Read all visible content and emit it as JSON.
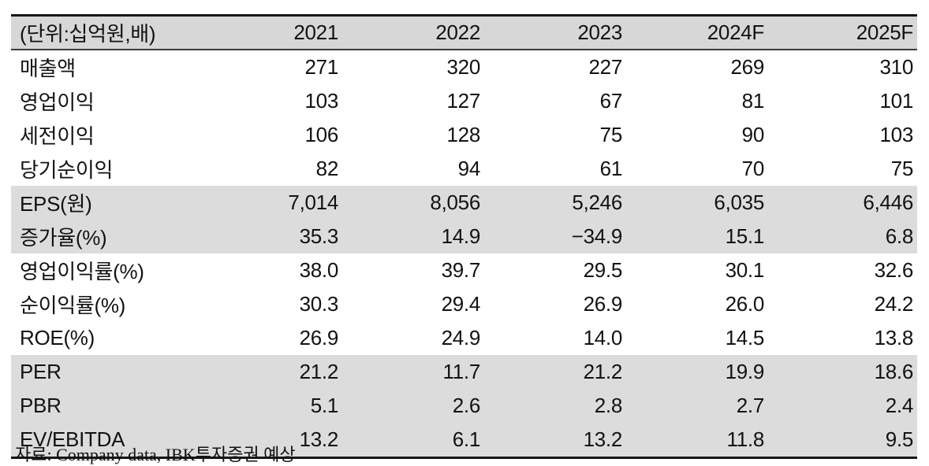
{
  "table": {
    "unit_label": "(단위:십억원,배)",
    "columns": [
      "2021",
      "2022",
      "2023",
      "2024F",
      "2025F"
    ],
    "rows": [
      {
        "label": "매출액",
        "values": [
          "271",
          "320",
          "227",
          "269",
          "310"
        ],
        "shaded": false
      },
      {
        "label": "영업이익",
        "values": [
          "103",
          "127",
          "67",
          "81",
          "101"
        ],
        "shaded": false
      },
      {
        "label": "세전이익",
        "values": [
          "106",
          "128",
          "75",
          "90",
          "103"
        ],
        "shaded": false
      },
      {
        "label": "당기순이익",
        "values": [
          "82",
          "94",
          "61",
          "70",
          "75"
        ],
        "shaded": false
      },
      {
        "label": "EPS(원)",
        "values": [
          "7,014",
          "8,056",
          "5,246",
          "6,035",
          "6,446"
        ],
        "shaded": true
      },
      {
        "label": "증가율(%)",
        "values": [
          "35.3",
          "14.9",
          "−34.9",
          "15.1",
          "6.8"
        ],
        "shaded": true
      },
      {
        "label": "영업이익률(%)",
        "values": [
          "38.0",
          "39.7",
          "29.5",
          "30.1",
          "32.6"
        ],
        "shaded": false
      },
      {
        "label": "순이익률(%)",
        "values": [
          "30.3",
          "29.4",
          "26.9",
          "26.0",
          "24.2"
        ],
        "shaded": false
      },
      {
        "label": "ROE(%)",
        "values": [
          "26.9",
          "24.9",
          "14.0",
          "14.5",
          "13.8"
        ],
        "shaded": false
      },
      {
        "label": "PER",
        "values": [
          "21.2",
          "11.7",
          "21.2",
          "19.9",
          "18.6"
        ],
        "shaded": true
      },
      {
        "label": "PBR",
        "values": [
          "5.1",
          "2.6",
          "2.8",
          "2.7",
          "2.4"
        ],
        "shaded": true
      },
      {
        "label": "EV/EBITDA",
        "values": [
          "13.2",
          "6.1",
          "13.2",
          "11.8",
          "9.5"
        ],
        "shaded": true
      }
    ]
  },
  "footer": {
    "source": "자료: Company data, IBK투자증권 예상"
  },
  "colors": {
    "header_shade": "#d7d7d7",
    "row_shade": "#dcdcdc",
    "border_dark": "#161616",
    "header_rule": "#3c3c3c"
  }
}
